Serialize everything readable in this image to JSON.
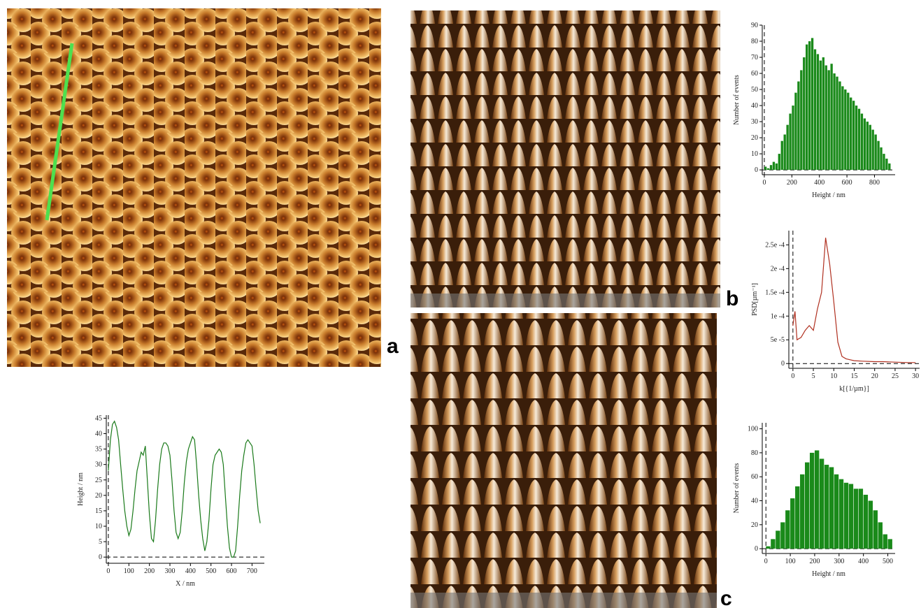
{
  "panel_labels": [
    "a",
    "b",
    "c"
  ],
  "chart_data": [
    {
      "type": "line",
      "xlabel": "X / nm",
      "ylabel": "Height / nm",
      "color": "#1a7a1a",
      "x": [
        0,
        10,
        20,
        30,
        40,
        50,
        60,
        70,
        80,
        90,
        100,
        110,
        120,
        130,
        140,
        150,
        160,
        170,
        180,
        190,
        200,
        210,
        220,
        230,
        240,
        250,
        260,
        270,
        280,
        290,
        300,
        310,
        320,
        330,
        340,
        350,
        360,
        370,
        380,
        390,
        400,
        410,
        420,
        430,
        440,
        450,
        460,
        470,
        480,
        490,
        500,
        510,
        520,
        530,
        540,
        550,
        560,
        570,
        580,
        590,
        600,
        610,
        620,
        630,
        640,
        650,
        660,
        670,
        680,
        690,
        700,
        710,
        720,
        730,
        740
      ],
      "values": [
        28,
        38,
        43,
        44,
        42,
        38,
        30,
        22,
        15,
        10,
        7,
        9,
        15,
        22,
        28,
        31,
        34,
        33,
        36,
        25,
        14,
        6,
        5,
        12,
        22,
        30,
        35,
        37,
        37,
        36,
        33,
        25,
        15,
        8,
        6,
        8,
        15,
        24,
        31,
        35,
        37,
        39,
        38,
        30,
        20,
        12,
        6,
        2,
        5,
        12,
        22,
        30,
        33,
        34,
        35,
        34,
        30,
        20,
        10,
        3,
        0,
        0,
        2,
        10,
        20,
        28,
        33,
        37,
        38,
        37,
        36,
        30,
        22,
        15,
        11
      ],
      "xlim": [
        -10,
        760
      ],
      "ylim": [
        -2,
        46
      ],
      "xticks": [
        0,
        100,
        200,
        300,
        400,
        500,
        600,
        700
      ],
      "yticks": [
        0,
        5,
        10,
        15,
        20,
        25,
        30,
        35,
        40,
        45
      ]
    },
    {
      "type": "histogram",
      "xlabel": "Height / nm",
      "ylabel": "Number of events",
      "color": "#1a8a1a",
      "bins": [
        0,
        20,
        40,
        60,
        80,
        100,
        120,
        140,
        160,
        180,
        200,
        220,
        240,
        260,
        280,
        300,
        320,
        340,
        360,
        380,
        400,
        420,
        440,
        460,
        480,
        500,
        520,
        540,
        560,
        580,
        600,
        620,
        640,
        660,
        680,
        700,
        720,
        740,
        760,
        780,
        800,
        820,
        840,
        860,
        880,
        900,
        920
      ],
      "values": [
        2,
        1,
        3,
        5,
        4,
        10,
        18,
        22,
        28,
        35,
        40,
        48,
        55,
        62,
        70,
        78,
        80,
        82,
        75,
        72,
        68,
        70,
        65,
        62,
        66,
        60,
        58,
        55,
        52,
        50,
        48,
        45,
        43,
        40,
        38,
        35,
        32,
        30,
        28,
        25,
        22,
        18,
        14,
        10,
        7,
        4
      ],
      "xlim": [
        -15,
        950
      ],
      "ylim": [
        -3,
        90
      ],
      "xticks": [
        0,
        200,
        400,
        600,
        800
      ],
      "yticks": [
        0,
        10,
        20,
        30,
        40,
        50,
        60,
        70,
        80,
        90
      ]
    },
    {
      "type": "line",
      "xlabel": "k[{1/µm}]",
      "ylabel": "PSD[µm⁻¹]",
      "color": "#b03020",
      "x": [
        0,
        0.5,
        1,
        2,
        3,
        4,
        5,
        6,
        7,
        8,
        9,
        10,
        11,
        12,
        13,
        14,
        15,
        17,
        20,
        22,
        25,
        28,
        30
      ],
      "values": [
        8e-05,
        0.00011,
        5e-05,
        5.5e-05,
        7e-05,
        8e-05,
        7e-05,
        0.000115,
        0.00015,
        0.000265,
        0.00021,
        0.00013,
        4.5e-05,
        1.5e-05,
        1e-05,
        8e-06,
        6e-06,
        5e-06,
        4e-06,
        4e-06,
        3e-06,
        2e-06,
        2e-06
      ],
      "xlim": [
        -1,
        31
      ],
      "ylim": [
        -1e-05,
        0.00028
      ],
      "xticks": [
        0,
        5,
        10,
        15,
        20,
        25,
        30
      ],
      "yticks": [
        0,
        {
          "value": 5e-05,
          "label": "5e -5"
        },
        {
          "value": 0.0001,
          "label": "1e -4"
        },
        {
          "value": 0.00015,
          "label": "1.5e -4"
        },
        {
          "value": 0.0002,
          "label": "2e -4"
        },
        {
          "value": 0.00025,
          "label": "2.5e -4"
        }
      ]
    },
    {
      "type": "histogram",
      "xlabel": "Height / nm",
      "ylabel": "Number of events",
      "color": "#1a8a1a",
      "bins": [
        0,
        20,
        40,
        60,
        80,
        100,
        120,
        140,
        160,
        180,
        200,
        220,
        240,
        260,
        280,
        300,
        320,
        340,
        360,
        380,
        400,
        420,
        440,
        460,
        480,
        500,
        520
      ],
      "values": [
        2,
        8,
        15,
        22,
        32,
        42,
        52,
        62,
        72,
        80,
        82,
        75,
        70,
        68,
        62,
        58,
        55,
        54,
        50,
        50,
        45,
        40,
        32,
        22,
        12,
        8
      ],
      "xlim": [
        -15,
        530
      ],
      "ylim": [
        -4,
        105
      ],
      "xticks": [
        0,
        100,
        200,
        300,
        400,
        500
      ],
      "yticks": [
        0,
        20,
        40,
        60,
        80,
        100
      ]
    }
  ]
}
